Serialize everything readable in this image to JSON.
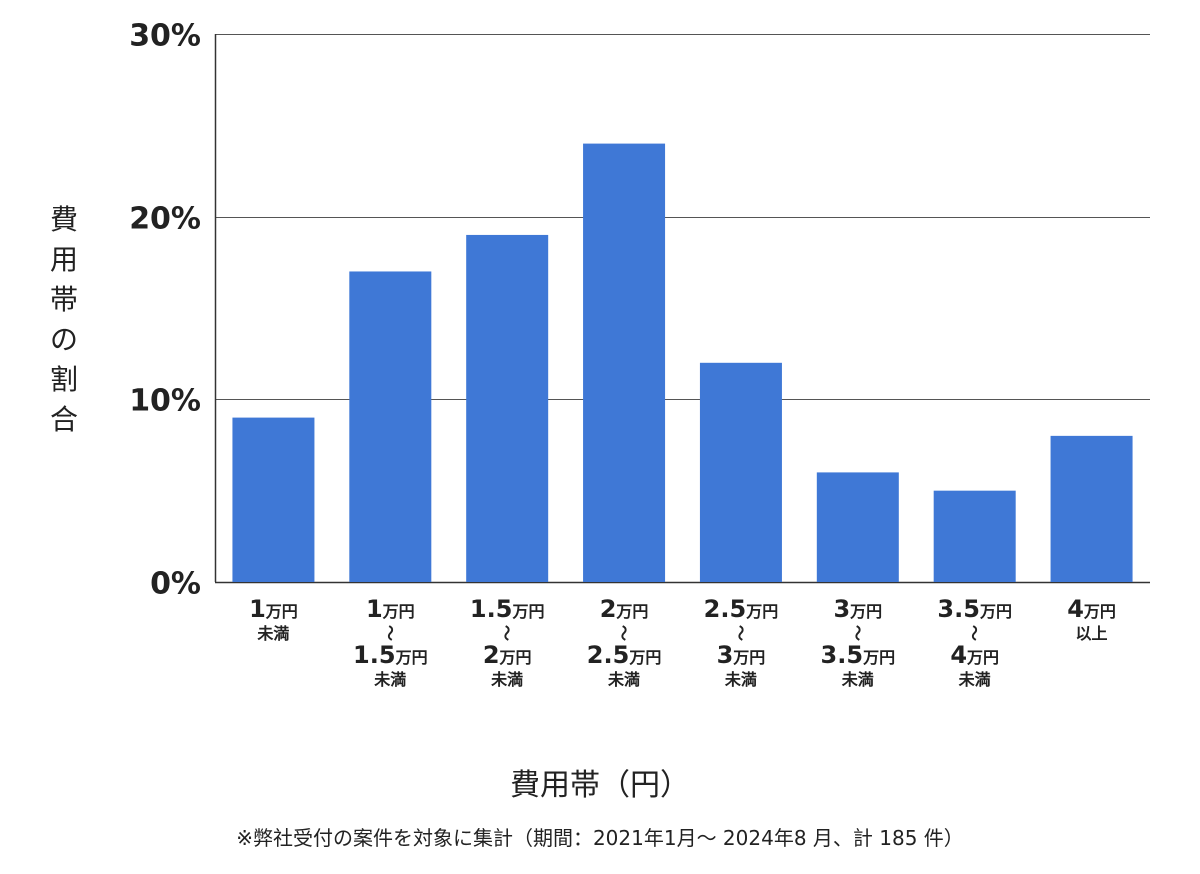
{
  "chart_data": {
    "type": "bar",
    "categories": [
      [
        "1万円",
        "未満"
      ],
      [
        "1万円",
        "〜",
        "1.5万円",
        "未満"
      ],
      [
        "1.5万円",
        "〜",
        "2万円",
        "未満"
      ],
      [
        "2万円",
        "〜",
        "2.5万円",
        "未満"
      ],
      [
        "2.5万円",
        "〜",
        "3万円",
        "未満"
      ],
      [
        "3万円",
        "〜",
        "3.5万円",
        "未満"
      ],
      [
        "3.5万円",
        "〜",
        "4万円",
        "未満"
      ],
      [
        "4万円",
        "以上"
      ]
    ],
    "values": [
      9,
      17,
      19,
      24,
      12,
      6,
      5,
      8
    ],
    "yticks": [
      0,
      10,
      20,
      30
    ],
    "ytick_labels": [
      "0%",
      "10%",
      "20%",
      "30%"
    ],
    "ylim": [
      0,
      30
    ],
    "ylabel": "費用帯の割合",
    "xlabel": "費用帯（円）",
    "note": "※弊社受付の案件を対象に集計（期間：2021年1月〜 2024年8 月、計 185 件）",
    "bar_color": "#3f78d6",
    "grid": true
  }
}
